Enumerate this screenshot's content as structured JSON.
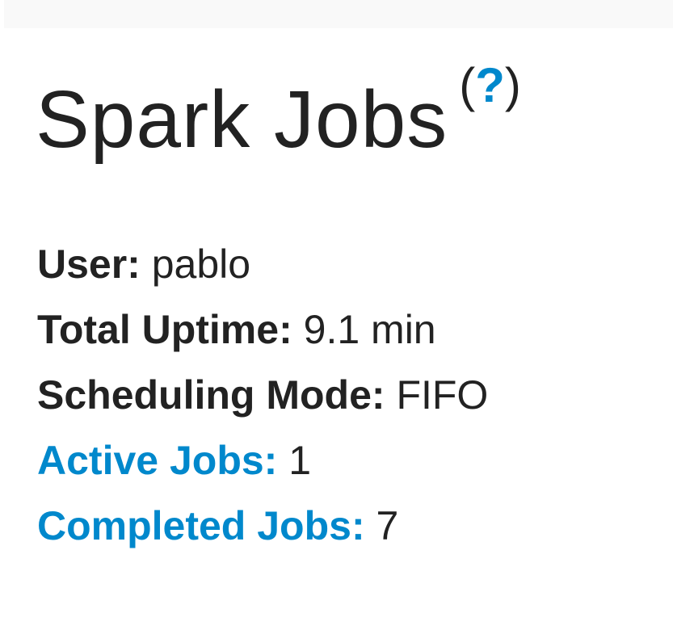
{
  "header": {
    "title": "Spark Jobs",
    "help_open": "(",
    "help_label": "?",
    "help_close": ")"
  },
  "summary": {
    "user_label": "User:",
    "user_value": "pablo",
    "uptime_label": "Total Uptime:",
    "uptime_value": "9.1 min",
    "scheduling_label": "Scheduling Mode:",
    "scheduling_value": "FIFO",
    "active_label": "Active Jobs:",
    "active_value": "1",
    "completed_label": "Completed Jobs:",
    "completed_value": "7"
  },
  "colors": {
    "link": "#0088cc",
    "text": "#222222"
  }
}
